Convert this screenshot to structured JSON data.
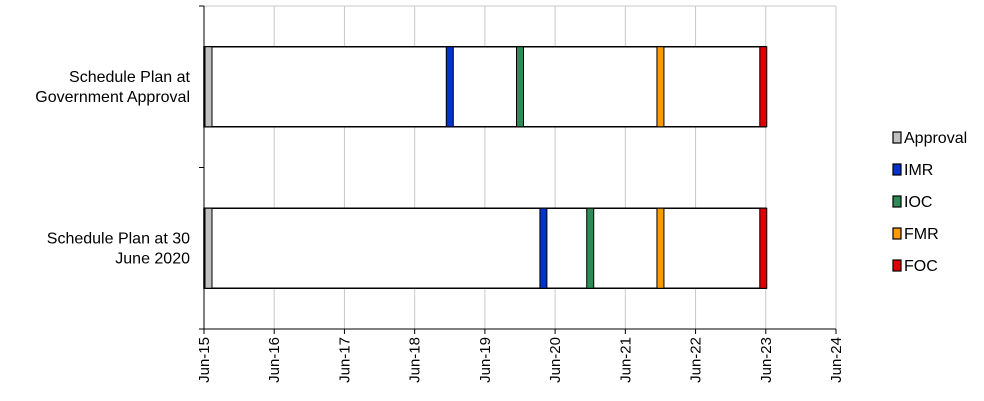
{
  "chart_data": {
    "type": "bar",
    "orientation": "horizontal",
    "title": "",
    "xlabel": "",
    "ylabel": "",
    "x_ticks": [
      "Jun-15",
      "Jun-16",
      "Jun-17",
      "Jun-18",
      "Jun-19",
      "Jun-20",
      "Jun-21",
      "Jun-22",
      "Jun-23",
      "Jun-24"
    ],
    "xlim": [
      "Jun-15",
      "Jun-24"
    ],
    "grid": "vertical",
    "legend_position": "right",
    "legend": [
      "Approval",
      "IMR",
      "IOC",
      "FMR",
      "FOC"
    ],
    "colors": {
      "Approval": "#c0c0c0",
      "IMR": "#0033cc",
      "IOC": "#2e8b57",
      "FMR": "#ff9900",
      "FOC": "#e00000"
    },
    "categories": [
      {
        "label_lines": [
          "Schedule Plan at",
          "Government Approval"
        ],
        "start": "Jun-15",
        "end": "Jun-23",
        "milestones": {
          "Approval": "Jun-15",
          "IMR": "Dec-18",
          "IOC": "Dec-19",
          "FMR": "Dec-21",
          "FOC": "Jun-23"
        }
      },
      {
        "label_lines": [
          "Schedule Plan at 30",
          "June 2020"
        ],
        "start": "Jun-15",
        "end": "Jun-23",
        "milestones": {
          "Approval": "Jun-15",
          "IMR": "Apr-20",
          "IOC": "Dec-20",
          "FMR": "Dec-21",
          "FOC": "Jun-23"
        }
      }
    ]
  }
}
